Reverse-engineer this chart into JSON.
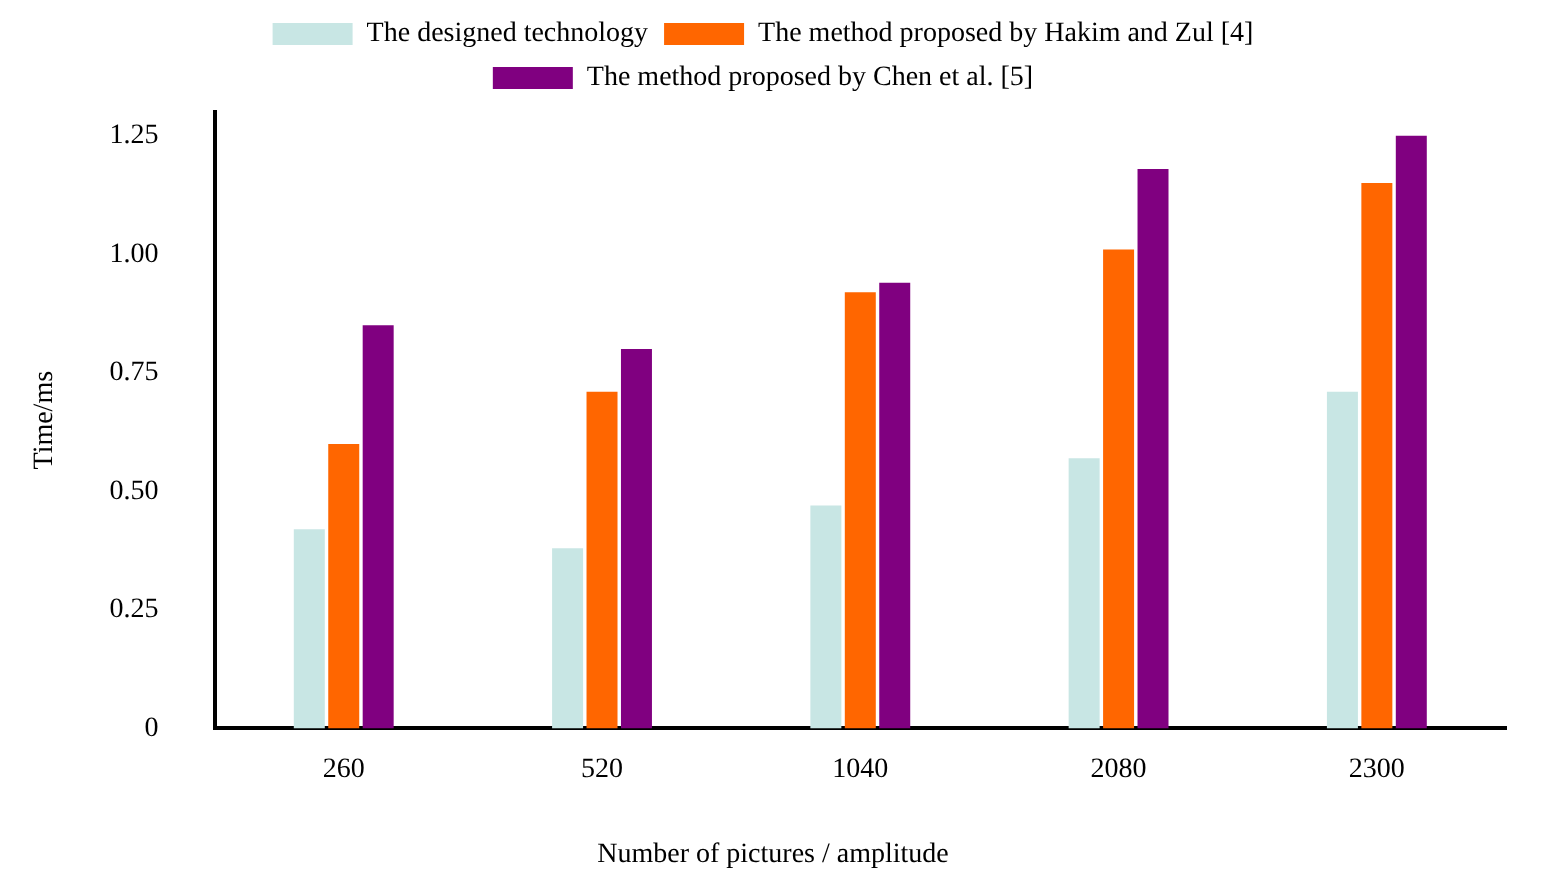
{
  "chart_data": {
    "type": "bar",
    "xlabel": "Number of pictures / amplitude",
    "ylabel": "Time/ms",
    "categories": [
      "260",
      "520",
      "1040",
      "2080",
      "2300"
    ],
    "series": [
      {
        "name": "The designed technology",
        "color": "#c8e6e4",
        "values": [
          0.42,
          0.38,
          0.47,
          0.57,
          0.71
        ]
      },
      {
        "name": "The method proposed by Hakim and Zul [4]",
        "color": "#ff6600",
        "values": [
          0.6,
          0.71,
          0.92,
          1.01,
          1.15
        ]
      },
      {
        "name": "The method proposed by Chen et al. [5]",
        "color": "#800080",
        "values": [
          0.85,
          0.8,
          0.94,
          1.18,
          1.25
        ]
      }
    ],
    "ylim": [
      0,
      1.3
    ],
    "yticks": [
      0,
      {
        "value": 0.25,
        "label": "0.25"
      },
      {
        "value": 0.5,
        "label": "0.50"
      },
      {
        "value": 0.75,
        "label": "0.75"
      },
      {
        "value": 1,
        "label": "1.00"
      },
      {
        "value": 1.25,
        "label": "1.25"
      }
    ],
    "grid": false,
    "legend": "top"
  }
}
